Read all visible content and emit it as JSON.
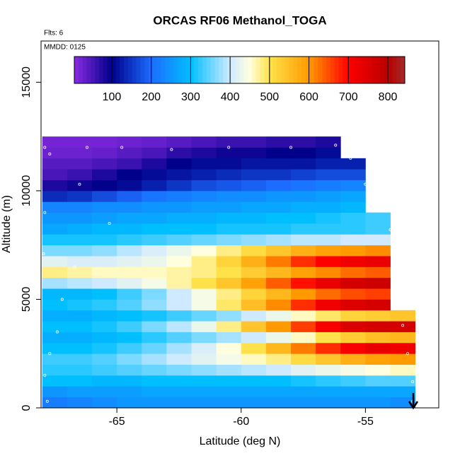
{
  "chart_data": {
    "type": "heatmap",
    "title": "ORCAS RF06 Methanol_TOGA",
    "annotations": [
      "Flts: 6",
      "MMDD: 0125"
    ],
    "xlabel": "Latitude (deg N)",
    "ylabel": "Altitude (m)",
    "xlim": [
      -68.05,
      -52.05
    ],
    "ylim": [
      0,
      16900
    ],
    "xticks": [
      -65,
      -60,
      -55
    ],
    "yticks": [
      0,
      5000,
      10000,
      15000
    ],
    "x_bins": [
      -68,
      -67,
      -66,
      -65,
      -64,
      -63,
      -62,
      -61,
      -60,
      -59,
      -58,
      -57,
      -56,
      -55,
      -54,
      -53
    ],
    "y_bins": [
      0,
      500,
      1000,
      1500,
      2000,
      2500,
      3000,
      3500,
      4000,
      4500,
      5000,
      5500,
      6000,
      6500,
      7000,
      7500,
      8000,
      8500,
      9000,
      9500,
      10000,
      10500,
      11000,
      11500,
      12000,
      12500
    ],
    "values": [
      [
        220,
        230,
        240,
        250,
        250,
        250,
        250,
        250,
        250,
        250,
        250,
        250,
        250,
        250,
        240
      ],
      [
        250,
        260,
        260,
        260,
        270,
        270,
        270,
        270,
        270,
        270,
        270,
        270,
        270,
        270,
        270
      ],
      [
        300,
        300,
        290,
        290,
        300,
        300,
        300,
        300,
        300,
        300,
        310,
        320,
        330,
        340,
        340
      ],
      [
        320,
        320,
        330,
        340,
        350,
        360,
        370,
        380,
        390,
        400,
        420,
        430,
        440,
        450,
        460
      ],
      [
        330,
        330,
        340,
        360,
        380,
        400,
        420,
        440,
        460,
        480,
        510,
        540,
        570,
        590,
        600
      ],
      [
        300,
        300,
        310,
        330,
        350,
        380,
        410,
        450,
        500,
        560,
        620,
        670,
        710,
        730,
        720
      ],
      [
        280,
        280,
        290,
        300,
        320,
        340,
        360,
        380,
        400,
        430,
        460,
        500,
        530,
        550,
        560
      ],
      [
        300,
        300,
        310,
        330,
        360,
        390,
        430,
        480,
        540,
        600,
        660,
        710,
        750,
        760,
        760
      ],
      [
        280,
        280,
        290,
        300,
        310,
        330,
        350,
        370,
        400,
        430,
        460,
        490,
        520,
        530,
        540
      ],
      [
        300,
        310,
        320,
        340,
        370,
        400,
        440,
        490,
        550,
        610,
        670,
        720,
        750,
        760,
        null
      ],
      [
        290,
        290,
        300,
        330,
        360,
        400,
        440,
        480,
        520,
        560,
        600,
        630,
        650,
        660,
        null
      ],
      [
        380,
        390,
        400,
        420,
        440,
        470,
        500,
        540,
        590,
        640,
        690,
        730,
        760,
        770,
        null
      ],
      [
        480,
        470,
        460,
        460,
        460,
        470,
        480,
        500,
        530,
        560,
        590,
        610,
        630,
        640,
        null
      ],
      [
        420,
        410,
        410,
        420,
        430,
        450,
        480,
        520,
        570,
        620,
        670,
        700,
        720,
        730,
        null
      ],
      [
        360,
        360,
        370,
        390,
        410,
        430,
        450,
        480,
        510,
        540,
        570,
        590,
        600,
        610,
        null
      ],
      [
        310,
        310,
        310,
        320,
        330,
        340,
        350,
        360,
        370,
        380,
        390,
        390,
        400,
        400,
        null
      ],
      [
        270,
        280,
        290,
        290,
        300,
        300,
        300,
        310,
        310,
        310,
        320,
        320,
        320,
        330,
        null
      ],
      [
        250,
        250,
        260,
        270,
        270,
        280,
        280,
        290,
        290,
        300,
        300,
        310,
        320,
        330,
        null
      ],
      [
        230,
        230,
        240,
        240,
        250,
        250,
        260,
        260,
        270,
        270,
        280,
        280,
        290,
        null,
        null
      ],
      [
        140,
        150,
        170,
        190,
        210,
        220,
        230,
        240,
        240,
        250,
        250,
        260,
        270,
        null,
        null
      ],
      [
        80,
        90,
        100,
        110,
        130,
        150,
        170,
        180,
        190,
        200,
        210,
        220,
        230,
        null,
        null
      ],
      [
        50,
        60,
        80,
        100,
        110,
        120,
        130,
        140,
        150,
        150,
        160,
        170,
        170,
        null,
        null
      ],
      [
        40,
        40,
        50,
        60,
        80,
        100,
        110,
        110,
        120,
        120,
        120,
        130,
        130,
        null,
        null
      ],
      [
        25,
        25,
        30,
        40,
        50,
        70,
        80,
        90,
        90,
        100,
        100,
        110,
        null,
        null,
        null
      ],
      [
        20,
        20,
        20,
        25,
        30,
        40,
        50,
        60,
        60,
        70,
        70,
        80,
        null,
        null,
        null
      ]
    ],
    "clim": [
      5,
      843
    ],
    "cticks": [
      100,
      200,
      300,
      400,
      500,
      600,
      700,
      800
    ],
    "colorscale": [
      [
        5,
        "#8a2be2"
      ],
      [
        100,
        "#00008b"
      ],
      [
        200,
        "#1c6cff"
      ],
      [
        300,
        "#00bfff"
      ],
      [
        400,
        "#cfeaff"
      ],
      [
        450,
        "#ffffe0"
      ],
      [
        500,
        "#ffe24a"
      ],
      [
        600,
        "#ff9a00"
      ],
      [
        700,
        "#ff0000"
      ],
      [
        800,
        "#b80000"
      ],
      [
        843,
        "#a52a2a"
      ]
    ],
    "points": {
      "color": "#ffffff",
      "x": [
        -67.9,
        -67.7,
        -66.2,
        -64.8,
        -62.8,
        -60.5,
        -58,
        -56.2,
        -55.6,
        -55,
        -54.5,
        -54,
        -53.8,
        -53.7,
        -53.5,
        -53.3,
        -53.1,
        -53.1,
        -66.5,
        -65.3,
        -66.7,
        -67.2,
        -67.4,
        -67.7,
        -67.9,
        -67.8,
        -67.95,
        -67.9
      ],
      "y": [
        12000,
        11700,
        12000,
        12000,
        11900,
        12000,
        12000,
        12100,
        11500,
        10300,
        9200,
        8200,
        6500,
        5700,
        3800,
        2500,
        1200,
        300,
        10300,
        8500,
        6500,
        5000,
        3500,
        2500,
        1500,
        300,
        7100,
        9000
      ]
    }
  }
}
